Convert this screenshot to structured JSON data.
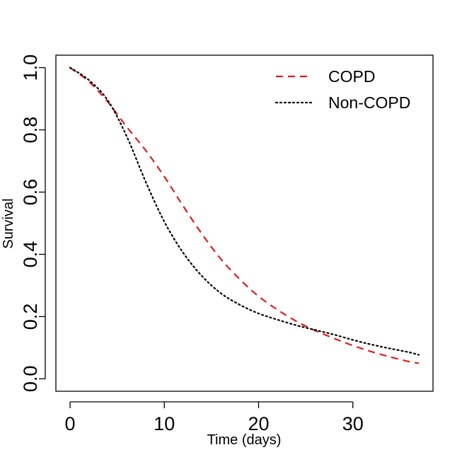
{
  "chart_data": {
    "type": "line",
    "title": "",
    "xlabel": "Time (days)",
    "ylabel": "Survival",
    "xlim": [
      -1.5,
      38.5
    ],
    "ylim": [
      -0.04,
      1.04
    ],
    "xticks": [
      0,
      10,
      20,
      30
    ],
    "yticks": [
      0.0,
      0.2,
      0.4,
      0.6,
      0.8,
      1.0
    ],
    "xtick_labels": [
      "0",
      "10",
      "20",
      "30"
    ],
    "ytick_labels": [
      "0.0",
      "0.2",
      "0.4",
      "0.6",
      "0.8",
      "1.0"
    ],
    "legend_position": "top-right",
    "series": [
      {
        "name": "COPD",
        "color": "#e41a1c",
        "style": "dashed",
        "x": [
          0,
          2,
          4,
          6,
          8,
          10,
          12,
          14,
          16,
          18,
          20,
          22,
          24,
          26,
          28,
          30,
          32,
          34,
          36,
          37
        ],
        "y": [
          1.0,
          0.955,
          0.89,
          0.81,
          0.735,
          0.65,
          0.555,
          0.465,
          0.385,
          0.32,
          0.265,
          0.222,
          0.185,
          0.155,
          0.13,
          0.107,
          0.087,
          0.07,
          0.055,
          0.05
        ]
      },
      {
        "name": "Non-COPD",
        "color": "#000000",
        "style": "dotted",
        "x": [
          0,
          2,
          4,
          6,
          8,
          10,
          12,
          14,
          16,
          18,
          20,
          22,
          24,
          26,
          28,
          30,
          32,
          34,
          36,
          37
        ],
        "y": [
          1.0,
          0.96,
          0.895,
          0.78,
          0.635,
          0.505,
          0.405,
          0.33,
          0.275,
          0.238,
          0.21,
          0.19,
          0.172,
          0.157,
          0.142,
          0.125,
          0.11,
          0.097,
          0.085,
          0.077
        ]
      }
    ]
  }
}
